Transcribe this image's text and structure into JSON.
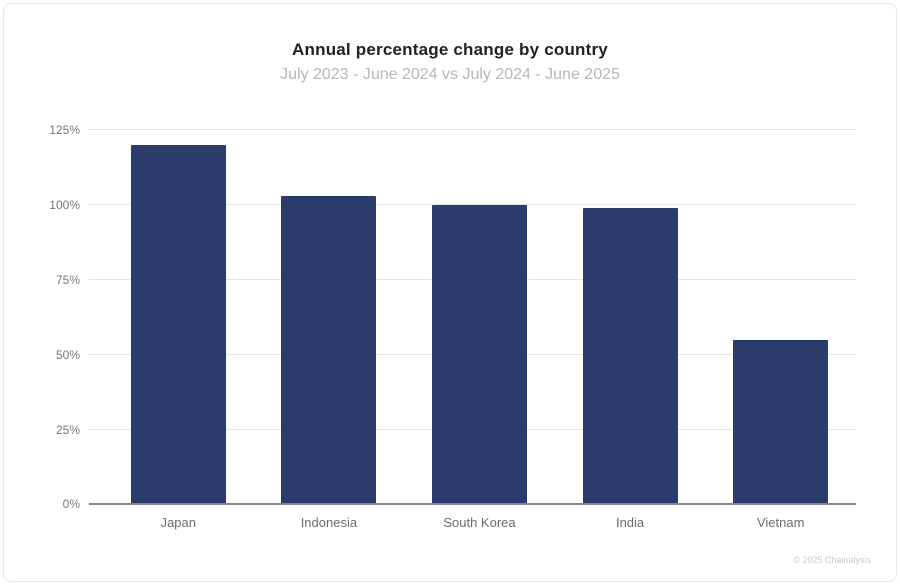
{
  "chart_data": {
    "type": "bar",
    "title": "Annual percentage change by country",
    "subtitle": "July 2023 - June 2024 vs July 2024 - June 2025",
    "categories": [
      "Japan",
      "Indonesia",
      "South Korea",
      "India",
      "Vietnam"
    ],
    "values": [
      120,
      103,
      100,
      99,
      55
    ],
    "xlabel": "",
    "ylabel": "",
    "ylim": [
      0,
      125
    ],
    "y_ticks": [
      {
        "value": 0,
        "label": "0%"
      },
      {
        "value": 25,
        "label": "25%"
      },
      {
        "value": 50,
        "label": "50%"
      },
      {
        "value": 75,
        "label": "75%"
      },
      {
        "value": 100,
        "label": "100%"
      },
      {
        "value": 125,
        "label": "125%"
      }
    ],
    "grid": "horizontal",
    "legend": "none",
    "bar_color": "#2a3b6c"
  },
  "footer": {
    "copyright": "© 2025 Chainalysis"
  },
  "colors": {
    "bar": "#2a3b6c",
    "gridline": "#e4e4e7",
    "axis_line": "#85858a",
    "title_text": "#212126",
    "subtitle_text": "#b6b6be",
    "tick_text": "#77777c",
    "footer_text": "#c8c8cf"
  }
}
